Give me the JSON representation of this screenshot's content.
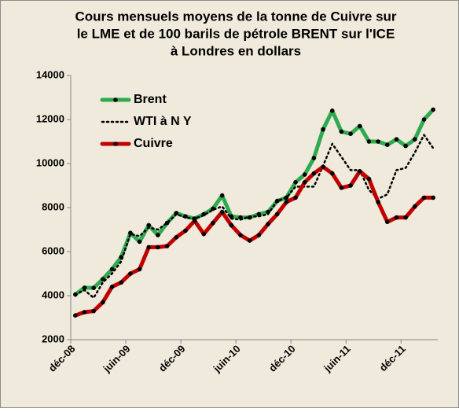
{
  "chart_data": {
    "type": "line",
    "title": [
      "Cours mensuels moyens de la tonne de Cuivre sur",
      "le LME et de 100 barils  de pétrole BRENT sur l'ICE",
      "à Londres en dollars"
    ],
    "categories": [
      "déc-08",
      null,
      null,
      null,
      null,
      null,
      "juin-09",
      null,
      null,
      null,
      null,
      null,
      "déc-09",
      null,
      null,
      null,
      null,
      null,
      "juin-10",
      null,
      null,
      null,
      null,
      null,
      "déc-10",
      null,
      null,
      null,
      null,
      null,
      "juin-11",
      null,
      null,
      null,
      null,
      null,
      "déc-11",
      null,
      null,
      null
    ],
    "series": [
      {
        "name": "Brent",
        "color": "#2faa4f",
        "style": "solid",
        "markers": true,
        "values": [
          4050,
          4360,
          4350,
          4750,
          5200,
          5750,
          6850,
          6450,
          7200,
          6750,
          7300,
          7750,
          7600,
          7500,
          7700,
          7950,
          8550,
          7600,
          7550,
          7550,
          7700,
          7800,
          8300,
          8450,
          9150,
          9500,
          10250,
          11550,
          12400,
          11450,
          11350,
          11700,
          11000,
          11000,
          10850,
          11100,
          10800,
          11100,
          12000,
          12450
        ]
      },
      {
        "name": "WTI à N Y",
        "color": "#000000",
        "style": "dotted",
        "markers": false,
        "values": [
          4050,
          4250,
          3900,
          4600,
          5000,
          5550,
          6800,
          6700,
          7100,
          7000,
          7300,
          7700,
          7550,
          7500,
          7650,
          7900,
          8050,
          7500,
          7450,
          7600,
          7600,
          7700,
          8300,
          8450,
          8950,
          8950,
          8950,
          9900,
          10900,
          10300,
          9700,
          9700,
          8800,
          8400,
          8600,
          9700,
          9800,
          10500,
          11300,
          10700
        ]
      },
      {
        "name": "Cuivre",
        "color": "#c00000",
        "style": "solid",
        "markers": true,
        "values": [
          3100,
          3250,
          3300,
          3700,
          4400,
          4600,
          5000,
          5200,
          6200,
          6200,
          6250,
          6650,
          6950,
          7400,
          6800,
          7300,
          7800,
          7200,
          6750,
          6500,
          6750,
          7250,
          7700,
          8250,
          8450,
          9150,
          9550,
          9850,
          9550,
          8900,
          9000,
          9650,
          9300,
          8250,
          7350,
          7550,
          7550,
          8050,
          8450,
          8450
        ]
      }
    ],
    "ylim": [
      2000,
      14000
    ],
    "yticks": [
      2000,
      4000,
      6000,
      8000,
      10000,
      12000,
      14000
    ],
    "grid": false,
    "legend": "top-left"
  }
}
